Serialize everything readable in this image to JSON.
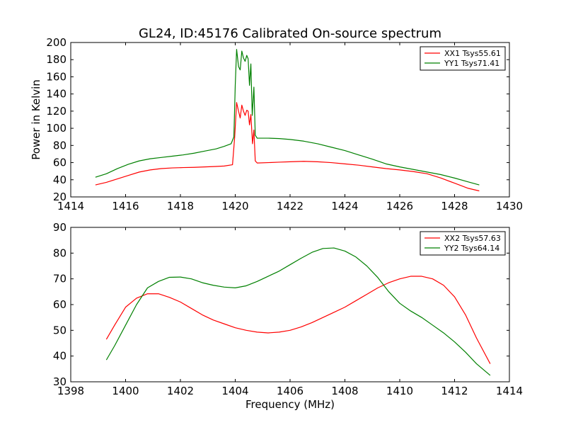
{
  "figure": {
    "title": "GL24, ID:45176 Calibrated On-source spectrum"
  },
  "colors": {
    "XX": "#ff0000",
    "YY": "#008000"
  },
  "chart_data": [
    {
      "type": "line",
      "title": "GL24, ID:45176 Calibrated On-source spectrum",
      "xlabel": "",
      "ylabel": "Power in Kelvin",
      "xlim": [
        1414,
        1430
      ],
      "ylim": [
        20,
        200
      ],
      "xticks": [
        1414,
        1416,
        1418,
        1420,
        1422,
        1424,
        1426,
        1428,
        1430
      ],
      "yticks": [
        20,
        40,
        60,
        80,
        100,
        120,
        140,
        160,
        180,
        200
      ],
      "legend_position": "top-right",
      "series": [
        {
          "name": "XX1 Tsys55.61",
          "color": "#ff0000",
          "points": [
            [
              1414.9,
              34
            ],
            [
              1415.3,
              37
            ],
            [
              1415.7,
              41
            ],
            [
              1416.1,
              45
            ],
            [
              1416.5,
              49
            ],
            [
              1416.9,
              51.5
            ],
            [
              1417.3,
              53
            ],
            [
              1417.7,
              53.8
            ],
            [
              1418.1,
              54.2
            ],
            [
              1418.5,
              54.5
            ],
            [
              1418.9,
              55
            ],
            [
              1419.3,
              55.5
            ],
            [
              1419.6,
              56
            ],
            [
              1419.9,
              57.5
            ],
            [
              1419.98,
              90
            ],
            [
              1420.05,
              130
            ],
            [
              1420.12,
              120
            ],
            [
              1420.18,
              112
            ],
            [
              1420.24,
              127
            ],
            [
              1420.3,
              120
            ],
            [
              1420.36,
              115
            ],
            [
              1420.42,
              121
            ],
            [
              1420.47,
              120
            ],
            [
              1420.52,
              104
            ],
            [
              1420.57,
              116
            ],
            [
              1420.63,
              82
            ],
            [
              1420.68,
              98
            ],
            [
              1420.73,
              62
            ],
            [
              1420.8,
              59.5
            ],
            [
              1421.2,
              60
            ],
            [
              1421.6,
              60.5
            ],
            [
              1422.0,
              61
            ],
            [
              1422.5,
              61.5
            ],
            [
              1423.0,
              61
            ],
            [
              1423.5,
              60
            ],
            [
              1424.0,
              58.5
            ],
            [
              1424.5,
              57
            ],
            [
              1425.0,
              55
            ],
            [
              1425.5,
              53
            ],
            [
              1426.0,
              51.5
            ],
            [
              1426.5,
              49.5
            ],
            [
              1427.0,
              47
            ],
            [
              1427.5,
              42
            ],
            [
              1428.0,
              36
            ],
            [
              1428.5,
              30
            ],
            [
              1428.9,
              27
            ]
          ]
        },
        {
          "name": "YY1 Tsys71.41",
          "color": "#008000",
          "points": [
            [
              1414.9,
              43
            ],
            [
              1415.3,
              47
            ],
            [
              1415.7,
              53
            ],
            [
              1416.1,
              58
            ],
            [
              1416.5,
              62
            ],
            [
              1416.9,
              64.5
            ],
            [
              1417.3,
              66
            ],
            [
              1417.7,
              67.5
            ],
            [
              1418.1,
              69
            ],
            [
              1418.5,
              71
            ],
            [
              1418.9,
              73.5
            ],
            [
              1419.3,
              76
            ],
            [
              1419.6,
              79
            ],
            [
              1419.85,
              82
            ],
            [
              1419.95,
              90
            ],
            [
              1420.0,
              150
            ],
            [
              1420.05,
              192
            ],
            [
              1420.12,
              172
            ],
            [
              1420.18,
              168
            ],
            [
              1420.24,
              190
            ],
            [
              1420.3,
              182
            ],
            [
              1420.36,
              178
            ],
            [
              1420.42,
              185
            ],
            [
              1420.47,
              181
            ],
            [
              1420.52,
              150
            ],
            [
              1420.57,
              175
            ],
            [
              1420.62,
              115
            ],
            [
              1420.68,
              148
            ],
            [
              1420.73,
              92
            ],
            [
              1420.8,
              88.5
            ],
            [
              1421.2,
              88.5
            ],
            [
              1421.6,
              88
            ],
            [
              1422.0,
              87
            ],
            [
              1422.5,
              85
            ],
            [
              1423.0,
              82
            ],
            [
              1423.5,
              78
            ],
            [
              1424.0,
              74
            ],
            [
              1424.5,
              69
            ],
            [
              1425.0,
              64
            ],
            [
              1425.5,
              58.5
            ],
            [
              1426.0,
              55
            ],
            [
              1426.5,
              52
            ],
            [
              1427.0,
              49
            ],
            [
              1427.5,
              46
            ],
            [
              1428.0,
              42
            ],
            [
              1428.5,
              37.5
            ],
            [
              1428.9,
              34
            ]
          ]
        }
      ]
    },
    {
      "type": "line",
      "title": "",
      "xlabel": "Frequency (MHz)",
      "ylabel": "",
      "xlim": [
        1398,
        1414
      ],
      "ylim": [
        30,
        90
      ],
      "xticks": [
        1398,
        1400,
        1402,
        1404,
        1406,
        1408,
        1410,
        1412,
        1414
      ],
      "yticks": [
        30,
        40,
        50,
        60,
        70,
        80,
        90
      ],
      "legend_position": "top-right",
      "series": [
        {
          "name": "XX2 Tsys57.63",
          "color": "#ff0000",
          "points": [
            [
              1399.3,
              46.5
            ],
            [
              1399.6,
              52
            ],
            [
              1400.0,
              59
            ],
            [
              1400.4,
              62.5
            ],
            [
              1400.8,
              64.2
            ],
            [
              1401.2,
              64.2
            ],
            [
              1401.6,
              62.8
            ],
            [
              1402.0,
              61
            ],
            [
              1402.4,
              58.5
            ],
            [
              1402.8,
              56
            ],
            [
              1403.2,
              54
            ],
            [
              1403.6,
              52.5
            ],
            [
              1404.0,
              51
            ],
            [
              1404.4,
              50
            ],
            [
              1404.8,
              49.3
            ],
            [
              1405.2,
              49
            ],
            [
              1405.6,
              49.3
            ],
            [
              1406.0,
              50
            ],
            [
              1406.4,
              51.3
            ],
            [
              1406.8,
              53
            ],
            [
              1407.2,
              55
            ],
            [
              1407.6,
              57
            ],
            [
              1408.0,
              59
            ],
            [
              1408.4,
              61.5
            ],
            [
              1408.8,
              64
            ],
            [
              1409.2,
              66.5
            ],
            [
              1409.6,
              68.5
            ],
            [
              1410.0,
              70
            ],
            [
              1410.4,
              71
            ],
            [
              1410.8,
              71
            ],
            [
              1411.2,
              70
            ],
            [
              1411.6,
              67.5
            ],
            [
              1412.0,
              63
            ],
            [
              1412.4,
              56
            ],
            [
              1412.8,
              47
            ],
            [
              1413.3,
              37
            ]
          ]
        },
        {
          "name": "YY2 Tsys64.14",
          "color": "#008000",
          "points": [
            [
              1399.3,
              38.5
            ],
            [
              1399.6,
              44
            ],
            [
              1400.0,
              52
            ],
            [
              1400.4,
              60
            ],
            [
              1400.8,
              66.5
            ],
            [
              1401.2,
              69
            ],
            [
              1401.6,
              70.6
            ],
            [
              1402.0,
              70.7
            ],
            [
              1402.4,
              70
            ],
            [
              1402.8,
              68.5
            ],
            [
              1403.2,
              67.5
            ],
            [
              1403.6,
              66.8
            ],
            [
              1404.0,
              66.5
            ],
            [
              1404.4,
              67.3
            ],
            [
              1404.8,
              69
            ],
            [
              1405.2,
              71
            ],
            [
              1405.6,
              73
            ],
            [
              1406.0,
              75.5
            ],
            [
              1406.4,
              78
            ],
            [
              1406.8,
              80.3
            ],
            [
              1407.2,
              81.8
            ],
            [
              1407.6,
              82
            ],
            [
              1408.0,
              80.8
            ],
            [
              1408.4,
              78.5
            ],
            [
              1408.8,
              75
            ],
            [
              1409.2,
              70.5
            ],
            [
              1409.6,
              65
            ],
            [
              1410.0,
              60.5
            ],
            [
              1410.4,
              57.5
            ],
            [
              1410.8,
              55
            ],
            [
              1411.2,
              52
            ],
            [
              1411.6,
              49
            ],
            [
              1412.0,
              45.5
            ],
            [
              1412.4,
              41.5
            ],
            [
              1412.8,
              37
            ],
            [
              1413.3,
              32.5
            ]
          ]
        }
      ]
    }
  ]
}
